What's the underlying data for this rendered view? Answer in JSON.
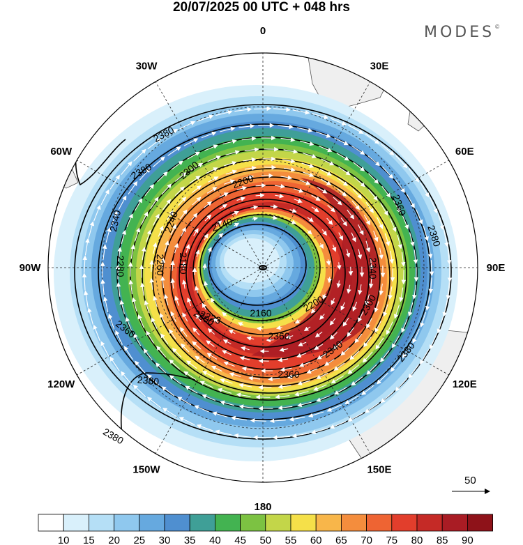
{
  "header": {
    "title": "20/07/2025  00 UTC  + 048 hrs",
    "brand": "MODES",
    "brand_mark": "©"
  },
  "map": {
    "projection": "south-polar-stereographic",
    "longitude_labels": [
      "0",
      "30E",
      "60E",
      "90E",
      "120E",
      "150E",
      "180",
      "150W",
      "120W",
      "90W",
      "60W",
      "30W"
    ],
    "contour_labels": [
      "2380",
      "2380",
      "2380",
      "2380",
      "2360",
      "2360",
      "2360",
      "2340",
      "2340",
      "2300",
      "2300",
      "2300",
      "2280",
      "2260",
      "2240",
      "2223",
      "2200",
      "2200",
      "2180",
      "2160",
      "2140",
      "2380",
      "2380",
      "2360",
      "2340"
    ],
    "wind_reference_value": "50"
  },
  "colorbar": {
    "labels": [
      "10",
      "15",
      "20",
      "25",
      "30",
      "35",
      "40",
      "45",
      "50",
      "55",
      "60",
      "65",
      "70",
      "75",
      "80",
      "85",
      "90"
    ],
    "colors": [
      "#ffffff",
      "#d9f0fb",
      "#b5dff6",
      "#8fc8ee",
      "#66a9df",
      "#4f8fd0",
      "#3f9f97",
      "#43b351",
      "#7cc242",
      "#c3d649",
      "#f5e049",
      "#f8b64a",
      "#f48d3d",
      "#ee6433",
      "#e23e2c",
      "#c52a26",
      "#a91c24",
      "#8e1219"
    ]
  }
}
